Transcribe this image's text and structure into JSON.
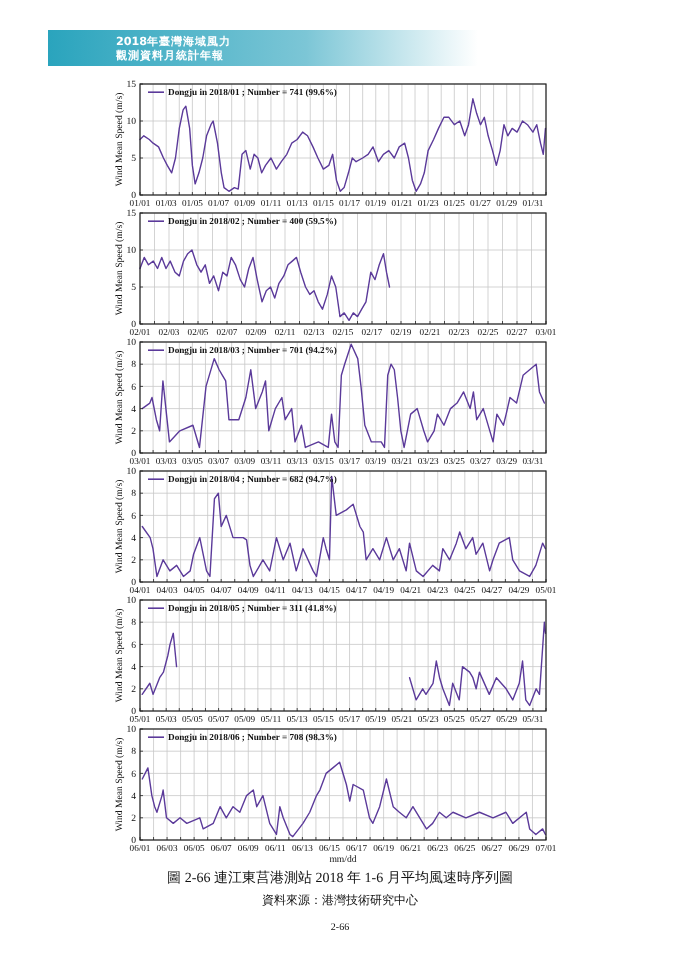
{
  "chart_data": [
    {
      "type": "line",
      "annotations": [
        "2018年臺灣海域風力",
        "觀測資料月統計年報"
      ],
      "ylabel": "Wind Mean Speed (m/s)",
      "legend": "top left",
      "grid": true,
      "xlim": [
        "2018-01-01",
        "2018-02-01"
      ],
      "ylim": [
        0,
        15
      ],
      "yticks": [
        0,
        5,
        10,
        15
      ],
      "xticks": [
        {
          "value": "2018-01-01",
          "label": "01/01"
        },
        {
          "value": "2018-01-02",
          "label": null
        },
        {
          "value": "2018-01-03",
          "label": "01/03"
        },
        {
          "value": "2018-01-04",
          "label": null
        },
        {
          "value": "2018-01-05",
          "label": "01/05"
        },
        {
          "value": "2018-01-06",
          "label": null
        },
        {
          "value": "2018-01-07",
          "label": "01/07"
        },
        {
          "value": "2018-01-08",
          "label": null
        },
        {
          "value": "2018-01-09",
          "label": "01/09"
        },
        {
          "value": "2018-01-10",
          "label": null
        },
        {
          "value": "2018-01-11",
          "label": "01/11"
        },
        {
          "value": "2018-01-12",
          "label": null
        },
        {
          "value": "2018-01-13",
          "label": "01/13"
        },
        {
          "value": "2018-01-14",
          "label": null
        },
        {
          "value": "2018-01-15",
          "label": "01/15"
        },
        {
          "value": "2018-01-16",
          "label": null
        },
        {
          "value": "2018-01-17",
          "label": "01/17"
        },
        {
          "value": "2018-01-18",
          "label": null
        },
        {
          "value": "2018-01-19",
          "label": "01/19"
        },
        {
          "value": "2018-01-20",
          "label": null
        },
        {
          "value": "2018-01-21",
          "label": "01/21"
        },
        {
          "value": "2018-01-22",
          "label": null
        },
        {
          "value": "2018-01-23",
          "label": "01/23"
        },
        {
          "value": "2018-01-24",
          "label": null
        },
        {
          "value": "2018-01-25",
          "label": "01/25"
        },
        {
          "value": "2018-01-26",
          "label": null
        },
        {
          "value": "2018-01-27",
          "label": "01/27"
        },
        {
          "value": "2018-01-28",
          "label": null
        },
        {
          "value": "2018-01-29",
          "label": "01/29"
        },
        {
          "value": "2018-01-30",
          "label": null
        },
        {
          "value": "2018-01-31",
          "label": "01/31"
        },
        {
          "value": "2018-02-01",
          "label": null
        }
      ],
      "series": [
        {
          "name": "Dongju in 2018/01 ; Number = 741 (99.6%)",
          "color": "#5b3a9a",
          "x": [
            "2018-01-01T00:00",
            "2018-01-01T07:00",
            "2018-01-01T17:00",
            "2018-01-02T00:00",
            "2018-01-02T10:00",
            "2018-01-02T19:00",
            "2018-01-03T02:00",
            "2018-01-03T10:00",
            "2018-01-03T17:00",
            "2018-01-04T00:00",
            "2018-01-04T07:00",
            "2018-01-04T12:00",
            "2018-01-04T19:00",
            "2018-01-05T00:00",
            "2018-01-05T05:00",
            "2018-01-05T12:00",
            "2018-01-05T19:00",
            "2018-01-06T02:00",
            "2018-01-06T10:00",
            "2018-01-06T14:00",
            "2018-01-06T22:00",
            "2018-01-07T05:00",
            "2018-01-07T10:00",
            "2018-01-07T19:00",
            "2018-01-08T05:00",
            "2018-01-08T12:00",
            "2018-01-08T19:00",
            "2018-01-09T02:00",
            "2018-01-09T10:00",
            "2018-01-09T17:00",
            "2018-01-10T00:00",
            "2018-01-10T07:00",
            "2018-01-10T14:00",
            "2018-01-11T00:00",
            "2018-01-11T10:00",
            "2018-01-11T19:00",
            "2018-01-12T05:00",
            "2018-01-12T14:00",
            "2018-01-13T00:00",
            "2018-01-13T10:00",
            "2018-01-13T19:00",
            "2018-01-14T05:00",
            "2018-01-14T14:00",
            "2018-01-15T00:00",
            "2018-01-15T10:00",
            "2018-01-15T17:00",
            "2018-01-16T00:00",
            "2018-01-16T07:00",
            "2018-01-16T14:00",
            "2018-01-16T22:00",
            "2018-01-17T05:00",
            "2018-01-17T12:00",
            "2018-01-18T00:00",
            "2018-01-18T10:00",
            "2018-01-18T19:00",
            "2018-01-19T05:00",
            "2018-01-19T14:00",
            "2018-01-20T00:00",
            "2018-01-20T10:00",
            "2018-01-20T19:00",
            "2018-01-21T05:00",
            "2018-01-21T12:00",
            "2018-01-21T19:00",
            "2018-01-22T02:00",
            "2018-01-22T10:00",
            "2018-01-22T17:00",
            "2018-01-23T00:00",
            "2018-01-23T10:00",
            "2018-01-23T19:00",
            "2018-01-24T05:00",
            "2018-01-24T14:00",
            "2018-01-25T00:00",
            "2018-01-25T10:00",
            "2018-01-25T19:00",
            "2018-01-26T02:00",
            "2018-01-26T10:00",
            "2018-01-26T17:00",
            "2018-01-27T00:00",
            "2018-01-27T07:00",
            "2018-01-27T14:00",
            "2018-01-27T22:00",
            "2018-01-28T05:00",
            "2018-01-28T12:00",
            "2018-01-28T19:00",
            "2018-01-29T02:00",
            "2018-01-29T10:00",
            "2018-01-29T19:00",
            "2018-01-30T05:00",
            "2018-01-30T14:00",
            "2018-01-31T00:00",
            "2018-01-31T07:00",
            "2018-01-31T14:00",
            "2018-01-31T19:00",
            "2018-01-31T23:00"
          ],
          "values": [
            7.5,
            8,
            7.5,
            7,
            6.5,
            5,
            4,
            3,
            5,
            9,
            11.5,
            12,
            9,
            4,
            1.5,
            3,
            5,
            8,
            9.5,
            10,
            7,
            3,
            1,
            0.5,
            1,
            0.8,
            5.5,
            6,
            3.5,
            5.5,
            5,
            3,
            4,
            5,
            3.5,
            4.5,
            5.5,
            7,
            7.5,
            8.5,
            8,
            6.5,
            5,
            3.5,
            4,
            5.5,
            2,
            0.5,
            1,
            3,
            5,
            4.5,
            5,
            5.5,
            6.5,
            4.5,
            5.5,
            6,
            5,
            6.5,
            7,
            5,
            2,
            0.5,
            1.5,
            3,
            6,
            7.5,
            9,
            10.5,
            10.5,
            9.5,
            10,
            8,
            9.5,
            13,
            11,
            9.5,
            10.5,
            8,
            6,
            4,
            6,
            9.5,
            8,
            9,
            8.5,
            10,
            9.5,
            8.5,
            9.5,
            7,
            5.5,
            9
          ]
        }
      ]
    },
    {
      "type": "line",
      "ylabel": "Wind Mean Speed (m/s)",
      "legend": "top left",
      "grid": true,
      "xlim": [
        "2018-02-01",
        "2018-03-01"
      ],
      "ylim": [
        0,
        15
      ],
      "yticks": [
        0,
        5,
        10,
        15
      ],
      "xticks": [
        {
          "value": "2018-02-01",
          "label": "02/01"
        },
        {
          "value": "2018-02-02",
          "label": null
        },
        {
          "value": "2018-02-03",
          "label": "02/03"
        },
        {
          "value": "2018-02-04",
          "label": null
        },
        {
          "value": "2018-02-05",
          "label": "02/05"
        },
        {
          "value": "2018-02-06",
          "label": null
        },
        {
          "value": "2018-02-07",
          "label": "02/07"
        },
        {
          "value": "2018-02-08",
          "label": null
        },
        {
          "value": "2018-02-09",
          "label": "02/09"
        },
        {
          "value": "2018-02-10",
          "label": null
        },
        {
          "value": "2018-02-11",
          "label": "02/11"
        },
        {
          "value": "2018-02-12",
          "label": null
        },
        {
          "value": "2018-02-13",
          "label": "02/13"
        },
        {
          "value": "2018-02-14",
          "label": null
        },
        {
          "value": "2018-02-15",
          "label": "02/15"
        },
        {
          "value": "2018-02-16",
          "label": null
        },
        {
          "value": "2018-02-17",
          "label": "02/17"
        },
        {
          "value": "2018-02-18",
          "label": null
        },
        {
          "value": "2018-02-19",
          "label": "02/19"
        },
        {
          "value": "2018-02-20",
          "label": null
        },
        {
          "value": "2018-02-21",
          "label": "02/21"
        },
        {
          "value": "2018-02-22",
          "label": null
        },
        {
          "value": "2018-02-23",
          "label": "02/23"
        },
        {
          "value": "2018-02-24",
          "label": null
        },
        {
          "value": "2018-02-25",
          "label": "02/25"
        },
        {
          "value": "2018-02-26",
          "label": null
        },
        {
          "value": "2018-02-27",
          "label": "02/27"
        },
        {
          "value": "2018-02-28",
          "label": null
        },
        {
          "value": "2018-03-01",
          "label": "03/01"
        }
      ],
      "series": [
        {
          "name": "Dongju in 2018/02 ; Number = 400 (59.5%)",
          "color": "#5b3a9a",
          "x": [
            "2018-02-01T00:00",
            "2018-02-01T07:00",
            "2018-02-01T14:00",
            "2018-02-01T22:00",
            "2018-02-02T05:00",
            "2018-02-02T12:00",
            "2018-02-02T19:00",
            "2018-02-03T02:00",
            "2018-02-03T10:00",
            "2018-02-03T17:00",
            "2018-02-04T00:00",
            "2018-02-04T07:00",
            "2018-02-04T14:00",
            "2018-02-04T22:00",
            "2018-02-05T05:00",
            "2018-02-05T12:00",
            "2018-02-05T19:00",
            "2018-02-06T02:00",
            "2018-02-06T10:00",
            "2018-02-06T17:00",
            "2018-02-07T00:00",
            "2018-02-07T07:00",
            "2018-02-07T14:00",
            "2018-02-07T22:00",
            "2018-02-08T05:00",
            "2018-02-08T12:00",
            "2018-02-08T19:00",
            "2018-02-09T02:00",
            "2018-02-09T10:00",
            "2018-02-09T17:00",
            "2018-02-10T00:00",
            "2018-02-10T07:00",
            "2018-02-10T14:00",
            "2018-02-10T22:00",
            "2018-02-11T05:00",
            "2018-02-11T12:00",
            "2018-02-11T19:00",
            "2018-02-12T02:00",
            "2018-02-12T10:00",
            "2018-02-12T17:00",
            "2018-02-13T00:00",
            "2018-02-13T07:00",
            "2018-02-13T14:00",
            "2018-02-13T22:00",
            "2018-02-14T05:00",
            "2018-02-14T12:00",
            "2018-02-14T19:00",
            "2018-02-15T02:00",
            "2018-02-15T10:00",
            "2018-02-15T17:00",
            "2018-02-16T00:00",
            "2018-02-16T07:00",
            "2018-02-16T14:00",
            "2018-02-16T22:00",
            "2018-02-17T05:00",
            "2018-02-17T12:00",
            "2018-02-17T19:00",
            "2018-02-18T00:00",
            "2018-02-18T05:00"
          ],
          "values": [
            7.5,
            9,
            8,
            8.5,
            7.5,
            9,
            7.5,
            8.5,
            7,
            6.5,
            8.5,
            9.5,
            10,
            8,
            7,
            8,
            5.5,
            6.5,
            4.5,
            7,
            6.5,
            9,
            8,
            6,
            5,
            7.5,
            9,
            6,
            3,
            4.5,
            5,
            3.5,
            5.5,
            6.5,
            8,
            8.5,
            9,
            7,
            5,
            4,
            4.5,
            3,
            2,
            4,
            6.5,
            5,
            1,
            1.5,
            0.5,
            1.5,
            1,
            2,
            3,
            7,
            6,
            8,
            9.5,
            7,
            5
          ]
        }
      ]
    },
    {
      "type": "line",
      "ylabel": "Wind Mean Speed (m/s)",
      "legend": "top left",
      "grid": true,
      "xlim": [
        "2018-03-01",
        "2018-04-01"
      ],
      "ylim": [
        0,
        10
      ],
      "yticks": [
        0,
        2,
        4,
        6,
        8,
        10
      ],
      "xticks": [
        {
          "value": "2018-03-01",
          "label": "03/01"
        },
        {
          "value": "2018-03-02",
          "label": null
        },
        {
          "value": "2018-03-03",
          "label": "03/03"
        },
        {
          "value": "2018-03-04",
          "label": null
        },
        {
          "value": "2018-03-05",
          "label": "03/05"
        },
        {
          "value": "2018-03-06",
          "label": null
        },
        {
          "value": "2018-03-07",
          "label": "03/07"
        },
        {
          "value": "2018-03-08",
          "label": null
        },
        {
          "value": "2018-03-09",
          "label": "03/09"
        },
        {
          "value": "2018-03-10",
          "label": null
        },
        {
          "value": "2018-03-11",
          "label": "03/11"
        },
        {
          "value": "2018-03-12",
          "label": null
        },
        {
          "value": "2018-03-13",
          "label": "03/13"
        },
        {
          "value": "2018-03-14",
          "label": null
        },
        {
          "value": "2018-03-15",
          "label": "03/15"
        },
        {
          "value": "2018-03-16",
          "label": null
        },
        {
          "value": "2018-03-17",
          "label": "03/17"
        },
        {
          "value": "2018-03-18",
          "label": null
        },
        {
          "value": "2018-03-19",
          "label": "03/19"
        },
        {
          "value": "2018-03-20",
          "label": null
        },
        {
          "value": "2018-03-21",
          "label": "03/21"
        },
        {
          "value": "2018-03-22",
          "label": null
        },
        {
          "value": "2018-03-23",
          "label": "03/23"
        },
        {
          "value": "2018-03-24",
          "label": null
        },
        {
          "value": "2018-03-25",
          "label": "03/25"
        },
        {
          "value": "2018-03-26",
          "label": null
        },
        {
          "value": "2018-03-27",
          "label": "03/27"
        },
        {
          "value": "2018-03-28",
          "label": null
        },
        {
          "value": "2018-03-29",
          "label": "03/29"
        },
        {
          "value": "2018-03-30",
          "label": null
        },
        {
          "value": "2018-03-31",
          "label": "03/31"
        },
        {
          "value": "2018-04-01",
          "label": null
        }
      ],
      "series": [
        {
          "name": "Dongju in 2018/03 ; Number = 701 (94.2%)",
          "color": "#5b3a9a",
          "x": [
            "2018-03-01T04:00",
            "2018-03-01T18:00",
            "2018-03-01T22:00",
            "2018-03-02T06:00",
            "2018-03-02T12:00",
            "2018-03-02T18:00",
            "2018-03-03T06:00",
            "2018-03-04T01:00",
            "2018-03-05T01:00",
            "2018-03-05T13:00",
            "2018-03-06T01:00",
            "2018-03-06T16:00",
            "2018-03-07T01:00",
            "2018-03-07T07:00",
            "2018-03-07T13:00",
            "2018-03-07T19:00",
            "2018-03-08T13:00",
            "2018-03-09T02:00",
            "2018-03-09T11:00",
            "2018-03-09T20:00",
            "2018-03-10T08:00",
            "2018-03-10T14:00",
            "2018-03-10T20:00",
            "2018-03-11T08:00",
            "2018-03-11T20:00",
            "2018-03-12T02:00",
            "2018-03-12T14:00",
            "2018-03-12T20:00",
            "2018-03-13T08:00",
            "2018-03-13T15:00",
            "2018-03-14T15:00",
            "2018-03-15T09:00",
            "2018-03-15T15:00",
            "2018-03-15T21:00",
            "2018-03-16T03:00",
            "2018-03-16T09:00",
            "2018-03-16T15:00",
            "2018-03-17T03:00",
            "2018-03-17T15:00",
            "2018-03-17T21:00",
            "2018-03-18T04:00",
            "2018-03-18T16:00",
            "2018-03-19T10:00",
            "2018-03-19T16:00",
            "2018-03-19T22:00",
            "2018-03-20T04:00",
            "2018-03-20T10:00",
            "2018-03-20T16:00",
            "2018-03-20T22:00",
            "2018-03-21T04:00",
            "2018-03-21T16:00",
            "2018-03-22T04:00",
            "2018-03-22T16:00",
            "2018-03-22T23:00",
            "2018-03-23T11:00",
            "2018-03-23T17:00",
            "2018-03-24T05:00",
            "2018-03-24T17:00",
            "2018-03-25T05:00",
            "2018-03-25T17:00",
            "2018-03-26T05:00",
            "2018-03-26T11:00",
            "2018-03-26T17:00",
            "2018-03-27T05:00",
            "2018-03-27T23:00",
            "2018-03-28T06:00",
            "2018-03-28T18:00",
            "2018-03-28T23:00",
            "2018-03-29T06:00",
            "2018-03-29T18:00",
            "2018-03-30T06:00",
            "2018-03-31T06:00",
            "2018-03-31T12:00",
            "2018-03-31T21:00"
          ],
          "values": [
            4,
            4.5,
            5,
            3,
            2,
            6.5,
            1,
            2,
            2.5,
            0.5,
            6,
            8.5,
            7.5,
            7,
            6.5,
            3,
            3,
            5,
            7.5,
            4,
            5.5,
            6.5,
            2,
            4,
            5,
            3,
            4,
            1,
            2.5,
            0.5,
            1,
            0.5,
            3.5,
            1,
            0.5,
            7,
            8,
            9.8,
            8.5,
            6,
            2.5,
            1,
            1,
            0.5,
            7,
            8,
            7.5,
            5,
            2,
            0.5,
            3.5,
            4,
            2,
            1,
            2,
            3.5,
            2.5,
            4,
            4.5,
            5.5,
            4,
            5.5,
            3,
            4,
            1,
            3.5,
            2.5,
            3.5,
            5,
            4.5,
            7,
            8,
            5.5,
            4.5
          ]
        }
      ]
    },
    {
      "type": "line",
      "ylabel": "Wind Mean Speed (m/s)",
      "legend": "top left",
      "grid": true,
      "xlim": [
        "2018-04-01",
        "2018-05-01"
      ],
      "ylim": [
        0,
        10
      ],
      "yticks": [
        0,
        2,
        4,
        6,
        8,
        10
      ],
      "xticks": [
        {
          "value": "2018-04-01",
          "label": "04/01"
        },
        {
          "value": "2018-04-02",
          "label": null
        },
        {
          "value": "2018-04-03",
          "label": "04/03"
        },
        {
          "value": "2018-04-04",
          "label": null
        },
        {
          "value": "2018-04-05",
          "label": "04/05"
        },
        {
          "value": "2018-04-06",
          "label": null
        },
        {
          "value": "2018-04-07",
          "label": "04/07"
        },
        {
          "value": "2018-04-08",
          "label": null
        },
        {
          "value": "2018-04-09",
          "label": "04/09"
        },
        {
          "value": "2018-04-10",
          "label": null
        },
        {
          "value": "2018-04-11",
          "label": "04/11"
        },
        {
          "value": "2018-04-12",
          "label": null
        },
        {
          "value": "2018-04-13",
          "label": "04/13"
        },
        {
          "value": "2018-04-14",
          "label": null
        },
        {
          "value": "2018-04-15",
          "label": "04/15"
        },
        {
          "value": "2018-04-16",
          "label": null
        },
        {
          "value": "2018-04-17",
          "label": "04/17"
        },
        {
          "value": "2018-04-18",
          "label": null
        },
        {
          "value": "2018-04-19",
          "label": "04/19"
        },
        {
          "value": "2018-04-20",
          "label": null
        },
        {
          "value": "2018-04-21",
          "label": "04/21"
        },
        {
          "value": "2018-04-22",
          "label": null
        },
        {
          "value": "2018-04-23",
          "label": "04/23"
        },
        {
          "value": "2018-04-24",
          "label": null
        },
        {
          "value": "2018-04-25",
          "label": "04/25"
        },
        {
          "value": "2018-04-26",
          "label": null
        },
        {
          "value": "2018-04-27",
          "label": "04/27"
        },
        {
          "value": "2018-04-28",
          "label": null
        },
        {
          "value": "2018-04-29",
          "label": "04/29"
        },
        {
          "value": "2018-04-30",
          "label": null
        },
        {
          "value": "2018-05-01",
          "label": "05/01"
        }
      ],
      "series": [
        {
          "name": "Dongju in 2018/04 ; Number = 682 (94.7%)",
          "color": "#5b3a9a",
          "x": [
            "2018-04-01T04:00",
            "2018-04-01T18:00",
            "2018-04-01T23:00",
            "2018-04-02T06:00",
            "2018-04-02T17:00",
            "2018-04-03T05:00",
            "2018-04-03T17:00",
            "2018-04-04T05:00",
            "2018-04-04T17:00",
            "2018-04-04T23:00",
            "2018-04-05T10:00",
            "2018-04-05T22:00",
            "2018-04-06T04:00",
            "2018-04-06T12:00",
            "2018-04-06T19:00",
            "2018-04-07T00:00",
            "2018-04-07T09:00",
            "2018-04-07T21:00",
            "2018-04-08T15:00",
            "2018-04-08T21:00",
            "2018-04-09T03:00",
            "2018-04-09T09:00",
            "2018-04-10T02:00",
            "2018-04-10T14:00",
            "2018-04-11T02:00",
            "2018-04-11T14:00",
            "2018-04-12T02:00",
            "2018-04-12T13:00",
            "2018-04-13T01:00",
            "2018-04-13T19:00",
            "2018-04-14T01:00",
            "2018-04-14T13:00",
            "2018-04-14T18:00",
            "2018-04-15T00:00",
            "2018-04-15T04:00",
            "2018-04-15T12:00",
            "2018-04-16T06:00",
            "2018-04-16T18:00",
            "2018-04-17T06:00",
            "2018-04-17T12:00",
            "2018-04-17T17:00",
            "2018-04-18T05:00",
            "2018-04-18T17:00",
            "2018-04-19T05:00",
            "2018-04-19T17:00",
            "2018-04-20T04:00",
            "2018-04-20T16:00",
            "2018-04-20T22:00",
            "2018-04-21T10:00",
            "2018-04-21T22:00",
            "2018-04-22T15:00",
            "2018-04-23T03:00",
            "2018-04-23T09:00",
            "2018-04-23T21:00",
            "2018-04-24T09:00",
            "2018-04-24T15:00",
            "2018-04-25T02:00",
            "2018-04-25T14:00",
            "2018-04-25T20:00",
            "2018-04-26T08:00",
            "2018-04-26T20:00",
            "2018-04-27T02:00",
            "2018-04-27T13:00",
            "2018-04-28T07:00",
            "2018-04-28T13:00",
            "2018-04-29T01:00",
            "2018-04-29T19:00",
            "2018-04-30T06:00",
            "2018-04-30T18:00",
            "2018-04-30T23:00"
          ],
          "values": [
            5,
            4,
            3,
            0.5,
            2,
            1,
            1.5,
            0.5,
            1,
            2.5,
            4,
            1,
            0.5,
            7.5,
            8,
            5,
            6,
            4,
            4,
            3.8,
            1.5,
            0.5,
            2,
            1,
            4,
            2,
            3.5,
            1,
            3,
            1,
            0.5,
            4,
            3,
            2,
            9.5,
            6,
            6.5,
            7,
            5,
            4.5,
            2,
            3,
            2,
            4,
            2,
            3,
            1,
            3.5,
            1,
            0.5,
            1.5,
            1,
            3,
            2,
            3.5,
            4.5,
            3,
            4,
            2.5,
            3.5,
            1,
            2,
            3.5,
            4,
            2,
            1,
            0.5,
            1.5,
            3.5,
            3
          ]
        }
      ]
    },
    {
      "type": "line",
      "ylabel": "Wind Mean Speed (m/s)",
      "legend": "top left",
      "grid": true,
      "xlim": [
        "2018-05-01",
        "2018-06-01"
      ],
      "ylim": [
        0,
        10
      ],
      "yticks": [
        0,
        2,
        4,
        6,
        8,
        10
      ],
      "xticks": [
        {
          "value": "2018-05-01",
          "label": "05/01"
        },
        {
          "value": "2018-05-02",
          "label": null
        },
        {
          "value": "2018-05-03",
          "label": "05/03"
        },
        {
          "value": "2018-05-04",
          "label": null
        },
        {
          "value": "2018-05-05",
          "label": "05/05"
        },
        {
          "value": "2018-05-06",
          "label": null
        },
        {
          "value": "2018-05-07",
          "label": "05/07"
        },
        {
          "value": "2018-05-08",
          "label": null
        },
        {
          "value": "2018-05-09",
          "label": "05/09"
        },
        {
          "value": "2018-05-10",
          "label": null
        },
        {
          "value": "2018-05-11",
          "label": "05/11"
        },
        {
          "value": "2018-05-12",
          "label": null
        },
        {
          "value": "2018-05-13",
          "label": "05/13"
        },
        {
          "value": "2018-05-14",
          "label": null
        },
        {
          "value": "2018-05-15",
          "label": "05/15"
        },
        {
          "value": "2018-05-16",
          "label": null
        },
        {
          "value": "2018-05-17",
          "label": "05/17"
        },
        {
          "value": "2018-05-18",
          "label": null
        },
        {
          "value": "2018-05-19",
          "label": "05/19"
        },
        {
          "value": "2018-05-20",
          "label": null
        },
        {
          "value": "2018-05-21",
          "label": "05/21"
        },
        {
          "value": "2018-05-22",
          "label": null
        },
        {
          "value": "2018-05-23",
          "label": "05/23"
        },
        {
          "value": "2018-05-24",
          "label": null
        },
        {
          "value": "2018-05-25",
          "label": "05/25"
        },
        {
          "value": "2018-05-26",
          "label": null
        },
        {
          "value": "2018-05-27",
          "label": "05/27"
        },
        {
          "value": "2018-05-28",
          "label": null
        },
        {
          "value": "2018-05-29",
          "label": "05/29"
        },
        {
          "value": "2018-05-30",
          "label": null
        },
        {
          "value": "2018-05-31",
          "label": "05/31"
        },
        {
          "value": "2018-06-01",
          "label": null
        }
      ],
      "series": [
        {
          "name": "Dongju in 2018/05 ; Number = 311 (41.8%)",
          "color": "#5b3a9a",
          "x": [
            "2018-05-01T04:00",
            "2018-05-01T18:00",
            "2018-05-02T00:00",
            "2018-05-02T12:00",
            "2018-05-02T19:00",
            "2018-05-03T03:00",
            "2018-05-03T07:00",
            "2018-05-03T13:00",
            "2018-05-03T19:00"
          ],
          "values": [
            1.5,
            2.5,
            1.5,
            3,
            3.5,
            5,
            6,
            7,
            4
          ]
        },
        {
          "color": "#5b3a9a",
          "x": [
            "2018-05-21T14:00",
            "2018-05-22T02:00",
            "2018-05-22T14:00",
            "2018-05-22T20:00",
            "2018-05-23T09:00",
            "2018-05-23T15:00",
            "2018-05-23T21:00",
            "2018-05-24T03:00",
            "2018-05-24T15:00",
            "2018-05-24T21:00",
            "2018-05-25T09:00",
            "2018-05-25T15:00",
            "2018-05-26T04:00",
            "2018-05-26T10:00",
            "2018-05-26T16:00",
            "2018-05-26T22:00",
            "2018-05-27T16:00",
            "2018-05-28T05:00",
            "2018-05-28T23:00",
            "2018-05-29T11:00",
            "2018-05-29T23:00",
            "2018-05-30T05:00",
            "2018-05-30T11:00",
            "2018-05-30T18:00",
            "2018-05-31T06:00",
            "2018-05-31T12:00",
            "2018-05-31T21:00",
            "2018-05-31T23:00"
          ],
          "values": [
            3,
            1,
            2,
            1.5,
            2.5,
            4.5,
            3,
            2,
            0.5,
            2.5,
            1,
            4,
            3.5,
            3,
            2,
            3.5,
            1.5,
            3,
            2,
            1,
            2.5,
            4.5,
            1,
            0.5,
            2,
            1.5,
            8,
            7
          ]
        }
      ]
    },
    {
      "type": "line",
      "ylabel": "Wind Mean Speed (m/s)",
      "xlabel": "mm/dd",
      "legend": "top left",
      "grid": true,
      "xlim": [
        "2018-06-01",
        "2018-07-01"
      ],
      "ylim": [
        0,
        10
      ],
      "yticks": [
        0,
        2,
        4,
        6,
        8,
        10
      ],
      "annotations": [
        "圖 2-66 連江東莒港測站 2018 年 1-6 月平均風速時序列圖",
        "資料來源：港灣技術研究中心",
        "2-66"
      ],
      "xticks": [
        {
          "value": "2018-06-01",
          "label": "06/01"
        },
        {
          "value": "2018-06-02",
          "label": null
        },
        {
          "value": "2018-06-03",
          "label": "06/03"
        },
        {
          "value": "2018-06-04",
          "label": null
        },
        {
          "value": "2018-06-05",
          "label": "06/05"
        },
        {
          "value": "2018-06-06",
          "label": null
        },
        {
          "value": "2018-06-07",
          "label": "06/07"
        },
        {
          "value": "2018-06-08",
          "label": null
        },
        {
          "value": "2018-06-09",
          "label": "06/09"
        },
        {
          "value": "2018-06-10",
          "label": null
        },
        {
          "value": "2018-06-11",
          "label": "06/11"
        },
        {
          "value": "2018-06-12",
          "label": null
        },
        {
          "value": "2018-06-13",
          "label": "06/13"
        },
        {
          "value": "2018-06-14",
          "label": null
        },
        {
          "value": "2018-06-15",
          "label": "06/15"
        },
        {
          "value": "2018-06-16",
          "label": null
        },
        {
          "value": "2018-06-17",
          "label": "06/17"
        },
        {
          "value": "2018-06-18",
          "label": null
        },
        {
          "value": "2018-06-19",
          "label": "06/19"
        },
        {
          "value": "2018-06-20",
          "label": null
        },
        {
          "value": "2018-06-21",
          "label": "06/21"
        },
        {
          "value": "2018-06-22",
          "label": null
        },
        {
          "value": "2018-06-23",
          "label": "06/23"
        },
        {
          "value": "2018-06-24",
          "label": null
        },
        {
          "value": "2018-06-25",
          "label": "06/25"
        },
        {
          "value": "2018-06-26",
          "label": null
        },
        {
          "value": "2018-06-27",
          "label": "06/27"
        },
        {
          "value": "2018-06-28",
          "label": null
        },
        {
          "value": "2018-06-29",
          "label": "06/29"
        },
        {
          "value": "2018-06-30",
          "label": null
        },
        {
          "value": "2018-07-01",
          "label": "07/01"
        }
      ],
      "series": [
        {
          "name": "Dongju in 2018/06 ; Number = 708 (98.3%)",
          "color": "#5b3a9a",
          "x": [
            "2018-06-01T04:00",
            "2018-06-01T14:00",
            "2018-06-01T21:00",
            "2018-06-02T02:00",
            "2018-06-02T06:00",
            "2018-06-02T15:00",
            "2018-06-02T17:00",
            "2018-06-02T23:00",
            "2018-06-03T11:00",
            "2018-06-03T23:00",
            "2018-06-04T11:00",
            "2018-06-05T10:00",
            "2018-06-05T16:00",
            "2018-06-06T10:00",
            "2018-06-06T22:00",
            "2018-06-07T09:00",
            "2018-06-07T21:00",
            "2018-06-08T09:00",
            "2018-06-08T21:00",
            "2018-06-09T09:00",
            "2018-06-09T15:00",
            "2018-06-10T02:00",
            "2018-06-10T14:00",
            "2018-06-11T02:00",
            "2018-06-11T08:00",
            "2018-06-11T14:00",
            "2018-06-12T02:00",
            "2018-06-12T07:00",
            "2018-06-13T01:00",
            "2018-06-13T13:00",
            "2018-06-14T01:00",
            "2018-06-14T07:00",
            "2018-06-14T18:00",
            "2018-06-15T06:00",
            "2018-06-15T18:00",
            "2018-06-16T06:00",
            "2018-06-16T12:00",
            "2018-06-16T18:00",
            "2018-06-17T12:00",
            "2018-06-17T23:00",
            "2018-06-18T05:00",
            "2018-06-18T17:00",
            "2018-06-19T05:00",
            "2018-06-19T17:00",
            "2018-06-20T04:00",
            "2018-06-20T16:00",
            "2018-06-21T04:00",
            "2018-06-22T04:00",
            "2018-06-22T15:00",
            "2018-06-23T03:00",
            "2018-06-23T15:00",
            "2018-06-24T03:00",
            "2018-06-25T02:00",
            "2018-06-26T02:00",
            "2018-06-27T02:00",
            "2018-06-28T01:00",
            "2018-06-28T13:00",
            "2018-06-29T13:00",
            "2018-06-29T19:00",
            "2018-06-30T06:00",
            "2018-06-30T18:00",
            "2018-06-30T23:00"
          ],
          "values": [
            5.5,
            6.5,
            4,
            3,
            2.5,
            4,
            4.5,
            2,
            1.5,
            2,
            1.5,
            2,
            1,
            1.5,
            3,
            2,
            3,
            2.5,
            4,
            4.5,
            3,
            4,
            1.5,
            0.5,
            3,
            2,
            0.5,
            0.3,
            1.5,
            2.5,
            4,
            4.5,
            6,
            6.5,
            7,
            5,
            3.5,
            5,
            4.5,
            2,
            1.5,
            3,
            5.5,
            3,
            2.5,
            2,
            3,
            1,
            1.5,
            2.5,
            2,
            2.5,
            2,
            2.5,
            2,
            2.5,
            1.5,
            2.5,
            1,
            0.5,
            1,
            0.5
          ]
        }
      ]
    }
  ]
}
